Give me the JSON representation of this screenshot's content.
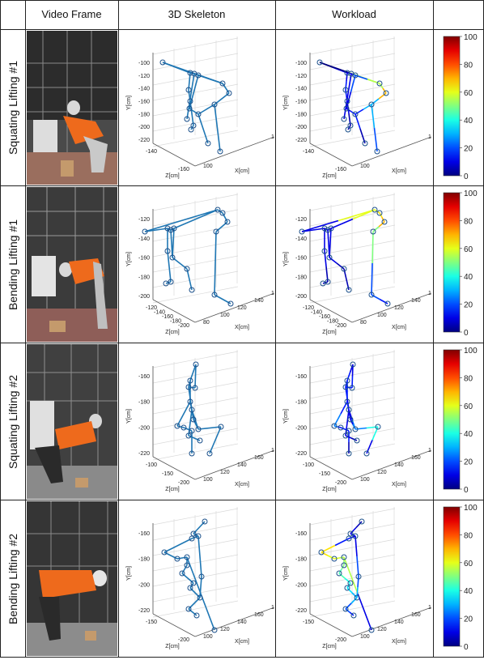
{
  "header": {
    "video_frame": "Video Frame",
    "skeleton": "3D Skeleton",
    "workload": "Workload"
  },
  "rows": [
    {
      "label": "Squating Lifting #1",
      "yticks": [
        "-100",
        "-120",
        "-140",
        "-160",
        "-180",
        "-200",
        "-220"
      ],
      "zticks": [
        "-140",
        "-160"
      ],
      "xticks": [
        "100",
        "150"
      ]
    },
    {
      "label": "Bending Lifting #1",
      "yticks": [
        "-120",
        "-140",
        "-160",
        "-180",
        "-200"
      ],
      "zticks": [
        "-120",
        "-140",
        "-160",
        "-180",
        "-200"
      ],
      "xticks": [
        "80",
        "100",
        "120",
        "140",
        "160"
      ]
    },
    {
      "label": "Squating Lifting #2",
      "yticks": [
        "-160",
        "-180",
        "-200",
        "-220"
      ],
      "zticks": [
        "-100",
        "-150",
        "-200"
      ],
      "xticks": [
        "100",
        "120",
        "140",
        "160",
        "180"
      ]
    },
    {
      "label": "Bending Lifting #2",
      "yticks": [
        "-160",
        "-180",
        "-200",
        "-220"
      ],
      "zticks": [
        "-150",
        "-200"
      ],
      "xticks": [
        "100",
        "120",
        "140",
        "160",
        "180"
      ]
    }
  ],
  "axes": {
    "ylabel": "Y[cm]",
    "zlabel": "Z[cm]",
    "xlabel": "X[cm]"
  },
  "colorbar": {
    "ticks": [
      "100",
      "80",
      "60",
      "40",
      "20",
      "0"
    ]
  },
  "colors": {
    "skeleton": "#1f77b4",
    "joint": "#1a4f8a",
    "grid": "#d9d9d9"
  }
}
